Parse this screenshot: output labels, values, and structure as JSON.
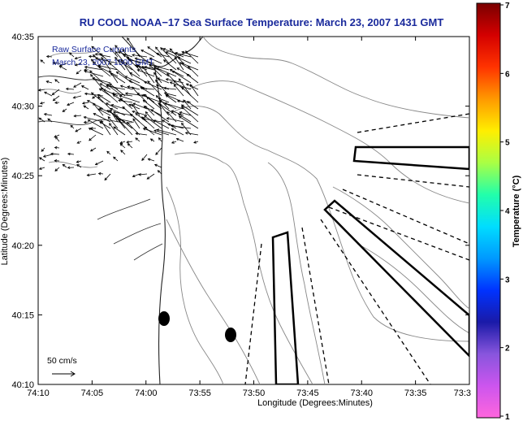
{
  "title": "RU COOL  NOAA−17 Sea Surface Temperature:  March 23, 2007 1431 GMT",
  "legend": {
    "line1": "Raw Surface Currents",
    "line2": "March 23, 2007 1500 GMT"
  },
  "scale_arrow_label": "50 cm/s",
  "axes": {
    "xlabel": "Longitude (Degrees:Minutes)",
    "ylabel": "Latitude (Degrees:Minutes)",
    "xticks": [
      "74:10",
      "74:05",
      "74:00",
      "73:55",
      "73:50",
      "73:45",
      "73:40",
      "73:35",
      "73:3"
    ],
    "yticks": [
      "40:35",
      "40:30",
      "40:25",
      "40:20",
      "40:15",
      "40:10"
    ]
  },
  "colorbar": {
    "label": "Temperature (°C)",
    "ticks": [
      "7",
      "6",
      "5",
      "4",
      "3",
      "2",
      "1"
    ],
    "colors": [
      "#7a0000",
      "#d40000",
      "#ff3300",
      "#ff9900",
      "#ffee00",
      "#aaff44",
      "#22ffaa",
      "#00ddff",
      "#0099ff",
      "#0033ff",
      "#1a1aa8",
      "#8855dd",
      "#cc55ee",
      "#ff66dd"
    ]
  }
}
